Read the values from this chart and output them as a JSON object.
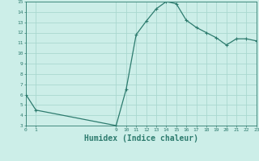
{
  "x": [
    0,
    1,
    9,
    10,
    11,
    12,
    13,
    14,
    15,
    16,
    17,
    18,
    19,
    20,
    21,
    22,
    23
  ],
  "y": [
    6.0,
    4.5,
    3.0,
    6.5,
    11.8,
    13.1,
    14.3,
    15.0,
    14.8,
    13.2,
    12.5,
    12.0,
    11.5,
    10.8,
    11.4,
    11.4,
    11.2
  ],
  "line_color": "#2d7b6e",
  "bg_color": "#cceee8",
  "grid_color": "#aad8d0",
  "xlabel": "Humidex (Indice chaleur)",
  "xlabel_fontsize": 7,
  "ylim": [
    3,
    15
  ],
  "xlim": [
    0,
    23
  ],
  "xticks": [
    0,
    1,
    9,
    10,
    11,
    12,
    13,
    14,
    15,
    16,
    17,
    18,
    19,
    20,
    21,
    22,
    23
  ],
  "yticks": [
    3,
    4,
    5,
    6,
    7,
    8,
    9,
    10,
    11,
    12,
    13,
    14,
    15
  ]
}
